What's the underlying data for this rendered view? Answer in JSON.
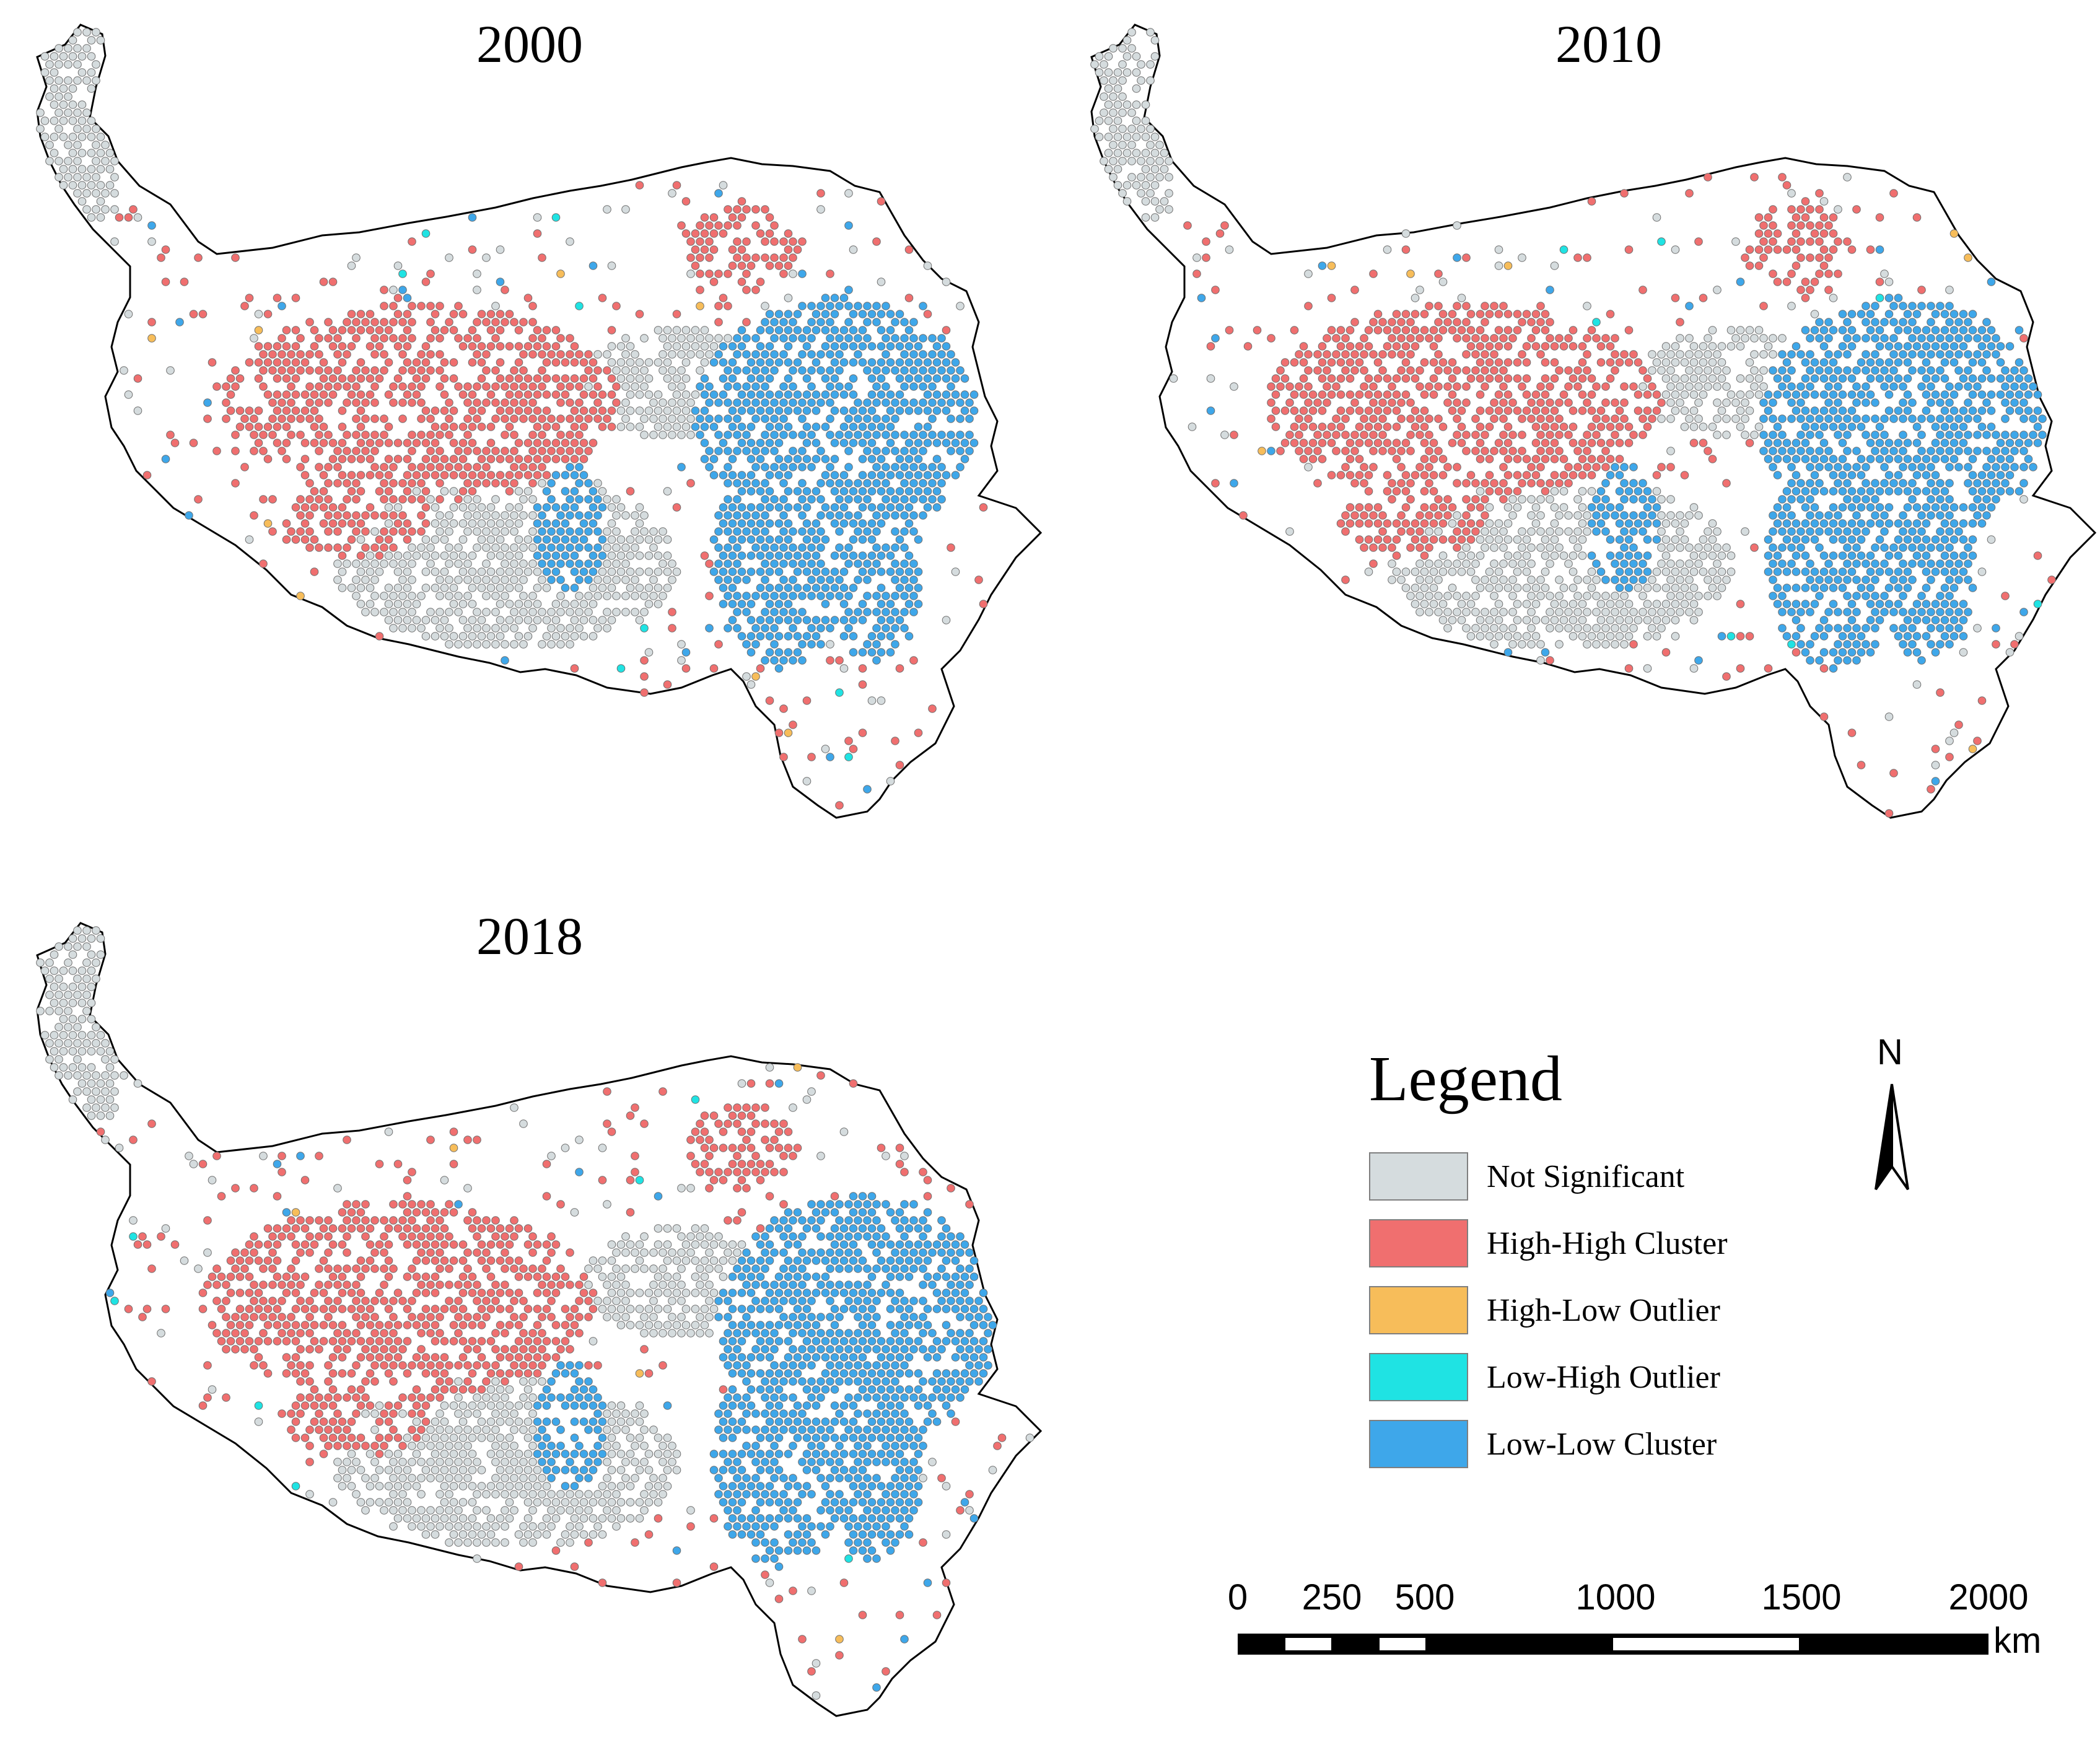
{
  "maps": [
    {
      "year": "2000"
    },
    {
      "year": "2010"
    },
    {
      "year": "2018"
    }
  ],
  "legend": {
    "title": "Legend",
    "items": [
      {
        "label": "Not Significant",
        "color": "#d5dcde"
      },
      {
        "label": "High-High Cluster",
        "color": "#f06f6f"
      },
      {
        "label": "High-Low Outlier",
        "color": "#f7bd5a"
      },
      {
        "label": "Low-High Outlier",
        "color": "#1fe3e3"
      },
      {
        "label": "Low-Low Cluster",
        "color": "#3ea7ea"
      }
    ]
  },
  "north_arrow": {
    "label": "N"
  },
  "scale_bar": {
    "ticks": [
      "0",
      "250",
      "500",
      "1000",
      "1500",
      "2000"
    ],
    "tick_values": [
      0,
      250,
      500,
      1000,
      1500,
      2000
    ],
    "unit": "km"
  },
  "colors": {
    "outline": "#000000",
    "cell_stroke": "#6f6f6f"
  }
}
